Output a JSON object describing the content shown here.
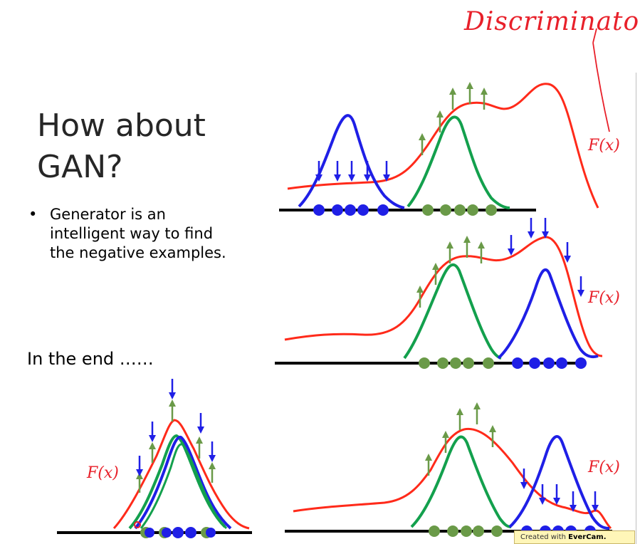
{
  "slide": {
    "title_line1": "How about",
    "title_line2": "GAN?",
    "bullet_line1": "Generator is an",
    "bullet_line2": "intelligent way to find",
    "bullet_line3": "the negative examples.",
    "end_heading": "In the end ……",
    "annotation": "Discriminator",
    "curve_label": "F(x)",
    "watermark_prefix": "Created with ",
    "watermark_brand": "EverCam."
  },
  "colors": {
    "discriminator": "#ff2a1a",
    "generated": "#1f1fe6",
    "real": "#13a04d",
    "real_points": "#6a9a48",
    "up_arrow": "#6a9a48",
    "down_arrow": "#1f1fe6"
  }
}
